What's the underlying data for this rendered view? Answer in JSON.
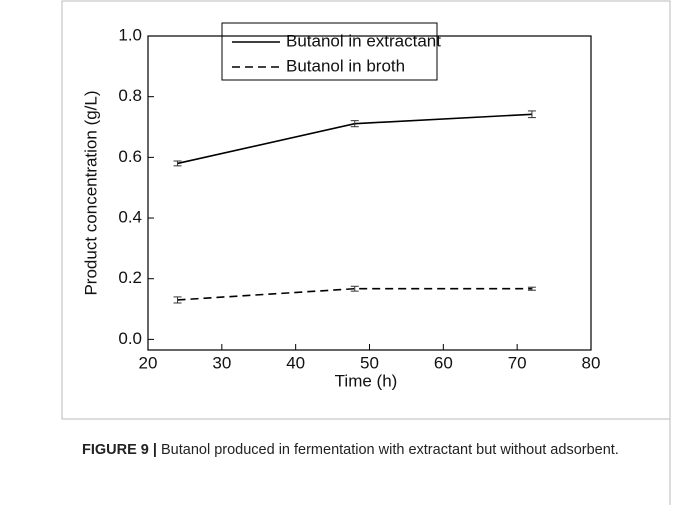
{
  "chart_data": {
    "type": "line",
    "x_label": "Time (h)",
    "y_label": "Product concentration (g/L)",
    "x": [
      24,
      48,
      72
    ],
    "series": [
      {
        "name": "Butanol in extractant",
        "color": "#000000",
        "dash": "solid",
        "values": [
          0.58,
          0.711,
          0.742
        ],
        "errors": [
          0.008,
          0.01,
          0.011
        ]
      },
      {
        "name": "Butanol in broth",
        "color": "#000000",
        "dash": "dashed",
        "values": [
          0.13,
          0.167,
          0.167
        ],
        "errors": [
          0.01,
          0.008,
          0.005
        ]
      }
    ],
    "xlim": [
      20,
      80
    ],
    "xticks": [
      20,
      30,
      40,
      50,
      60,
      70,
      80
    ],
    "ylim": [
      -0.035,
      1.0
    ],
    "yticks": [
      {
        "value": 0,
        "label": "0.0"
      },
      {
        "value": 0.2,
        "label": "0.2"
      },
      {
        "value": 0.4,
        "label": "0.4"
      },
      {
        "value": 0.6,
        "label": "0.6"
      },
      {
        "value": 0.8,
        "label": "0.8"
      },
      {
        "value": 1.0,
        "label": "1.0"
      }
    ],
    "legend": "top"
  },
  "caption": {
    "label": "FIGURE 9 |",
    "text": "Butanol produced in fermentation with extractant but without adsorbent."
  }
}
